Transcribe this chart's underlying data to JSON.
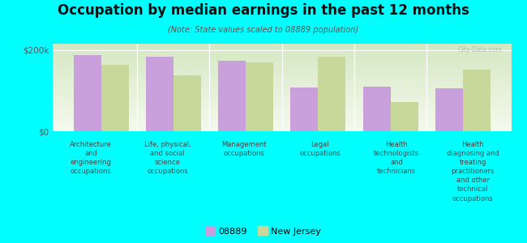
{
  "title": "Occupation by median earnings in the past 12 months",
  "subtitle": "(Note: State values scaled to 08889 population)",
  "background_color": "#00FFFF",
  "plot_bg_top": "#d4e8c2",
  "plot_bg_bottom": "#f5f9ee",
  "categories": [
    "Architecture\nand\nengineering\noccupations",
    "Life, physical,\nand social\nscience\noccupations",
    "Management\noccupations",
    "Legal\noccupations",
    "Health\ntechnologists\nand\ntechnicians",
    "Health\ndiagnosing and\ntreating\npractitioners\nand other\ntechnical\noccupations"
  ],
  "values_08889": [
    188000,
    183000,
    173000,
    108000,
    110000,
    105000
  ],
  "values_nj": [
    163000,
    138000,
    170000,
    183000,
    72000,
    152000
  ],
  "color_08889": "#c9a0dc",
  "color_nj": "#c8d89a",
  "ylim": [
    0,
    215000
  ],
  "yticks": [
    0,
    200000
  ],
  "ytick_labels": [
    "$0",
    "$200k"
  ],
  "legend_08889": "08889",
  "legend_nj": "New Jersey",
  "watermark": "City-Data.com"
}
